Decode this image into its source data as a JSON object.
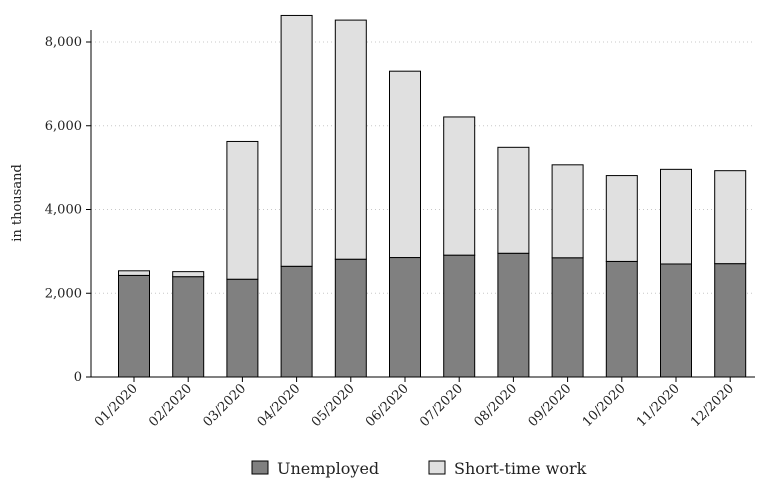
{
  "chart_data": {
    "type": "bar",
    "stacked": true,
    "title": "",
    "xlabel": "",
    "ylabel": "in thousand",
    "ylim": [
      0,
      8600
    ],
    "yticks": [
      0,
      2000,
      4000,
      6000,
      8000
    ],
    "ytick_labels": [
      "0",
      "2,000",
      "4,000",
      "6,000",
      "8,000"
    ],
    "grid": "horizontal dotted",
    "legend": "bottom",
    "categories": [
      "01/2020",
      "02/2020",
      "03/2020",
      "04/2020",
      "05/2020",
      "06/2020",
      "07/2020",
      "08/2020",
      "09/2020",
      "10/2020",
      "11/2020",
      "12/2020"
    ],
    "series": [
      {
        "name": "Unemployed",
        "color": "#808080",
        "values": [
          2426,
          2396,
          2335,
          2644,
          2813,
          2853,
          2910,
          2955,
          2847,
          2760,
          2699,
          2707
        ]
      },
      {
        "name": "Short-time work",
        "color": "#e0e0e0",
        "values": [
          110,
          120,
          3290,
          5990,
          5710,
          4450,
          3300,
          2530,
          2220,
          2050,
          2260,
          2220
        ]
      }
    ]
  }
}
